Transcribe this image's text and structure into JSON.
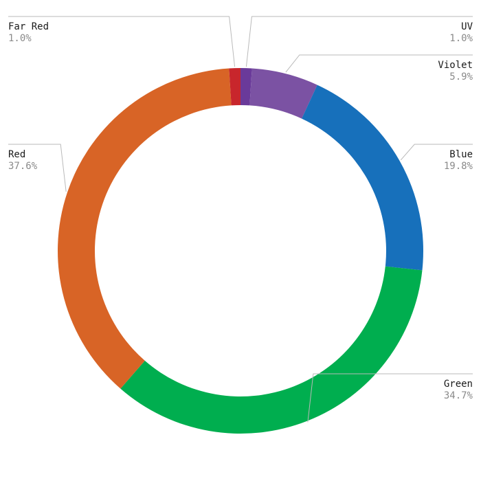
{
  "chart_data": {
    "type": "pie",
    "donut": true,
    "title": "",
    "start_angle_deg": 0,
    "direction": "clockwise",
    "slices": [
      {
        "label": "UV",
        "value": 1.0,
        "value_label": "1.0%",
        "color": "#6a3a9a",
        "label_side": "right"
      },
      {
        "label": "Violet",
        "value": 5.9,
        "value_label": "5.9%",
        "color": "#7b52a3",
        "label_side": "right"
      },
      {
        "label": "Blue",
        "value": 19.8,
        "value_label": "19.8%",
        "color": "#1770bb",
        "label_side": "right"
      },
      {
        "label": "Green",
        "value": 34.7,
        "value_label": "34.7%",
        "color": "#00ae4f",
        "label_side": "right"
      },
      {
        "label": "Red",
        "value": 37.6,
        "value_label": "37.6%",
        "color": "#d86426",
        "label_side": "left"
      },
      {
        "label": "Far Red",
        "value": 1.0,
        "value_label": "1.0%",
        "color": "#c8262c",
        "label_side": "left"
      }
    ]
  }
}
